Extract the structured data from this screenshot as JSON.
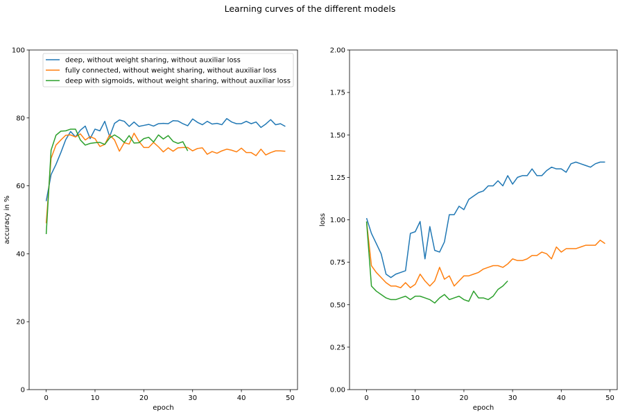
{
  "figure": {
    "title": "Learning curves of the different models"
  },
  "chart_data": [
    {
      "type": "line",
      "xlabel": "epoch",
      "ylabel": "accuracy  in %",
      "xlim": [
        -3.5,
        51.5
      ],
      "ylim": [
        0,
        100
      ],
      "xticks": [
        0,
        10,
        20,
        30,
        40,
        50
      ],
      "yticks": [
        0,
        20,
        40,
        60,
        80,
        100
      ],
      "ytick_labels": [
        "0",
        "20",
        "40",
        "60",
        "80",
        "100"
      ],
      "grid": false,
      "legend": "top-left",
      "series": [
        {
          "name": "deep, without weight sharing, without auxiliar loss",
          "color": "#1f77b4",
          "x": [
            0,
            1,
            2,
            3,
            4,
            5,
            6,
            7,
            8,
            9,
            10,
            11,
            12,
            13,
            14,
            15,
            16,
            17,
            18,
            19,
            20,
            21,
            22,
            23,
            24,
            25,
            26,
            27,
            28,
            29,
            30,
            31,
            32,
            33,
            34,
            35,
            36,
            37,
            38,
            39,
            40,
            41,
            42,
            43,
            44,
            45,
            46,
            47,
            48,
            49
          ],
          "values": [
            55.5,
            63.3,
            66.3,
            69.8,
            73.6,
            76.0,
            74.4,
            76.4,
            77.6,
            73.9,
            76.7,
            76.2,
            79.0,
            74.5,
            78.4,
            79.4,
            79.0,
            77.5,
            78.8,
            77.5,
            77.8,
            78.1,
            77.6,
            78.3,
            78.4,
            78.3,
            79.2,
            79.1,
            78.3,
            77.7,
            79.7,
            78.7,
            78.0,
            79.0,
            78.2,
            78.4,
            78.0,
            79.8,
            78.8,
            78.3,
            78.3,
            79.0,
            78.3,
            78.8,
            77.2,
            78.2,
            79.5,
            78.0,
            78.3,
            77.5
          ]
        },
        {
          "name": "fully connected, without weight sharing, without auxiliar loss",
          "color": "#ff7f0e",
          "x": [
            0,
            1,
            2,
            3,
            4,
            5,
            6,
            7,
            8,
            9,
            10,
            11,
            12,
            13,
            14,
            15,
            16,
            17,
            18,
            19,
            20,
            21,
            22,
            23,
            24,
            25,
            26,
            27,
            28,
            29,
            30,
            31,
            32,
            33,
            34,
            35,
            36,
            37,
            38,
            39,
            40,
            41,
            42,
            43,
            44,
            45,
            46,
            47,
            48,
            49
          ],
          "values": [
            49.0,
            68.1,
            72.0,
            73.5,
            74.9,
            75.0,
            74.4,
            75.3,
            73.5,
            74.5,
            73.9,
            71.6,
            72.2,
            75.0,
            73.5,
            70.2,
            72.7,
            72.3,
            75.5,
            73.1,
            71.3,
            71.3,
            72.8,
            71.5,
            70.0,
            71.2,
            70.2,
            71.2,
            71.3,
            71.3,
            70.3,
            71.0,
            71.2,
            69.3,
            70.1,
            69.6,
            70.3,
            70.8,
            70.5,
            70.0,
            71.1,
            69.8,
            69.8,
            68.9,
            70.8,
            69.1,
            69.8,
            70.3,
            70.3,
            70.2
          ]
        },
        {
          "name": "deep with sigmoids, without weight sharing, without auxiliar loss",
          "color": "#2ca02c",
          "x": [
            0,
            1,
            2,
            3,
            4,
            5,
            6,
            7,
            8,
            9,
            10,
            11,
            12,
            13,
            14,
            15,
            16,
            17,
            18,
            19,
            20,
            21,
            22,
            23,
            24,
            25,
            26,
            27,
            28,
            29
          ],
          "values": [
            45.8,
            70.5,
            74.9,
            76.1,
            76.2,
            76.7,
            76.7,
            73.5,
            72.0,
            72.5,
            72.7,
            72.8,
            72.2,
            74.1,
            75.0,
            74.1,
            72.8,
            74.8,
            72.6,
            72.7,
            73.9,
            74.3,
            72.9,
            75.0,
            73.8,
            74.8,
            73.1,
            72.5,
            73.0,
            70.3
          ]
        }
      ]
    },
    {
      "type": "line",
      "xlabel": "epoch",
      "ylabel": "loss",
      "xlim": [
        -3.5,
        51.5
      ],
      "ylim": [
        0,
        2
      ],
      "xticks": [
        0,
        10,
        20,
        30,
        40,
        50
      ],
      "yticks": [
        0,
        0.25,
        0.5,
        0.75,
        1.0,
        1.25,
        1.5,
        1.75,
        2.0
      ],
      "ytick_labels": [
        "0.00",
        "0.25",
        "0.50",
        "0.75",
        "1.00",
        "1.25",
        "1.50",
        "1.75",
        "2.00"
      ],
      "grid": false,
      "series": [
        {
          "color": "#1f77b4",
          "x": [
            0,
            1,
            2,
            3,
            4,
            5,
            6,
            7,
            8,
            9,
            10,
            11,
            12,
            13,
            14,
            15,
            16,
            17,
            18,
            19,
            20,
            21,
            22,
            23,
            24,
            25,
            26,
            27,
            28,
            29,
            30,
            31,
            32,
            33,
            34,
            35,
            36,
            37,
            38,
            39,
            40,
            41,
            42,
            43,
            44,
            45,
            46,
            47,
            48,
            49
          ],
          "values": [
            1.01,
            0.92,
            0.86,
            0.8,
            0.68,
            0.66,
            0.68,
            0.69,
            0.7,
            0.92,
            0.93,
            0.99,
            0.77,
            0.96,
            0.82,
            0.81,
            0.87,
            1.03,
            1.03,
            1.08,
            1.06,
            1.12,
            1.14,
            1.16,
            1.17,
            1.2,
            1.2,
            1.23,
            1.2,
            1.26,
            1.21,
            1.25,
            1.26,
            1.26,
            1.3,
            1.26,
            1.26,
            1.29,
            1.31,
            1.3,
            1.3,
            1.28,
            1.33,
            1.34,
            1.33,
            1.32,
            1.31,
            1.33,
            1.34,
            1.34
          ]
        },
        {
          "color": "#ff7f0e",
          "x": [
            0,
            1,
            2,
            3,
            4,
            5,
            6,
            7,
            8,
            9,
            10,
            11,
            12,
            13,
            14,
            15,
            16,
            17,
            18,
            19,
            20,
            21,
            22,
            23,
            24,
            25,
            26,
            27,
            28,
            29,
            30,
            31,
            32,
            33,
            34,
            35,
            36,
            37,
            38,
            39,
            40,
            41,
            42,
            43,
            44,
            45,
            46,
            47,
            48,
            49
          ],
          "values": [
            0.99,
            0.73,
            0.69,
            0.66,
            0.63,
            0.61,
            0.61,
            0.6,
            0.63,
            0.6,
            0.62,
            0.68,
            0.64,
            0.61,
            0.64,
            0.72,
            0.65,
            0.67,
            0.61,
            0.64,
            0.67,
            0.67,
            0.68,
            0.69,
            0.71,
            0.72,
            0.73,
            0.73,
            0.72,
            0.74,
            0.77,
            0.76,
            0.76,
            0.77,
            0.79,
            0.79,
            0.81,
            0.8,
            0.77,
            0.84,
            0.81,
            0.83,
            0.83,
            0.83,
            0.84,
            0.85,
            0.85,
            0.85,
            0.88,
            0.86
          ]
        },
        {
          "color": "#2ca02c",
          "x": [
            0,
            1,
            2,
            3,
            4,
            5,
            6,
            7,
            8,
            9,
            10,
            11,
            12,
            13,
            14,
            15,
            16,
            17,
            18,
            19,
            20,
            21,
            22,
            23,
            24,
            25,
            26,
            27,
            28,
            29
          ],
          "values": [
            0.99,
            0.61,
            0.58,
            0.56,
            0.54,
            0.53,
            0.53,
            0.54,
            0.55,
            0.53,
            0.55,
            0.55,
            0.54,
            0.53,
            0.51,
            0.54,
            0.56,
            0.53,
            0.54,
            0.55,
            0.53,
            0.52,
            0.58,
            0.54,
            0.54,
            0.53,
            0.55,
            0.59,
            0.61,
            0.64
          ]
        }
      ]
    }
  ]
}
